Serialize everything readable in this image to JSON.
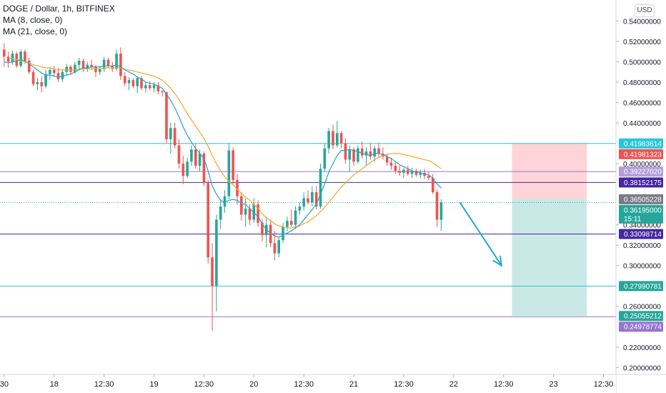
{
  "legend": {
    "symbol": "DOGE / Dollar, 1h, BITFINEX",
    "ma1": "MA (8, close, 0)",
    "ma2": "MA (21, close, 0)"
  },
  "currency_button": "USD",
  "colors": {
    "up": "#26a69a",
    "down": "#ef5350",
    "ma_fast": "#2196f3",
    "ma_fast_line": "#26a3c6",
    "ma_slow": "#f5a623",
    "cyan_line": "#26c6da",
    "purple_line": "#7e57c2",
    "arrow": "#1ea8d6",
    "profit_zone": "#b2dfdb",
    "loss_zone": "#ffcdd2"
  },
  "axis": {
    "y_ticks": [
      "0.54000000",
      "0.52000000",
      "0.50000000",
      "0.48000000",
      "0.46000000",
      "0.44000000",
      "0.40000000",
      "0.34000000",
      "0.32000000",
      "0.30000000",
      "0.26000000",
      "0.22000000",
      "0.20000000"
    ],
    "y_tick_values": [
      0.54,
      0.52,
      0.5,
      0.48,
      0.46,
      0.44,
      0.4,
      0.34,
      0.32,
      0.3,
      0.26,
      0.22,
      0.2
    ],
    "x_ticks": [
      "30",
      "18",
      "12:30",
      "19",
      "12:30",
      "20",
      "12:30",
      "21",
      "12:30",
      "22",
      "12:30",
      "23",
      "12:30"
    ],
    "x_tick_bars": [
      0,
      12,
      24,
      36,
      48,
      60,
      72,
      84,
      96,
      108,
      120,
      132,
      144
    ]
  },
  "price_labels": [
    {
      "text": "0.41983614",
      "value": 0.41983614,
      "bg": "#26c6da",
      "fg": "#ffffff"
    },
    {
      "text": "0.41981323",
      "value": 0.41981323,
      "bg": "#ef5350",
      "fg": "#ffffff"
    },
    {
      "text": "0.39227020",
      "value": 0.3922702,
      "bg": "#b39ddb",
      "fg": "#ffffff"
    },
    {
      "text": "0.38152175",
      "value": 0.38152175,
      "bg": "#4527a0",
      "fg": "#ffffff"
    },
    {
      "text": "0.36505228",
      "value": 0.36505228,
      "bg": "#787b86",
      "fg": "#ffffff"
    },
    {
      "text": "0.36195000",
      "value": 0.36195,
      "bg": "#26a69a",
      "fg": "#ffffff",
      "countdown": "15:11"
    },
    {
      "text": "0.33098714",
      "value": 0.33098714,
      "bg": "#4527a0",
      "fg": "#ffffff"
    },
    {
      "text": "0.27990781",
      "value": 0.27990781,
      "bg": "#26a69a",
      "fg": "#ffffff"
    },
    {
      "text": "0.25055212",
      "value": 0.25055212,
      "bg": "#26a69a",
      "fg": "#ffffff"
    },
    {
      "text": "0.24978774",
      "value": 0.24978774,
      "bg": "#9575cd",
      "fg": "#ffffff"
    }
  ],
  "levels": [
    {
      "value": 0.41983614,
      "color": "#26c6da",
      "style": "solid"
    },
    {
      "value": 0.3922702,
      "color": "#9575cd",
      "style": "solid"
    },
    {
      "value": 0.38152175,
      "color": "#4527a0",
      "style": "solid"
    },
    {
      "value": 0.36195,
      "color": "#26a69a",
      "style": "dotted"
    },
    {
      "value": 0.33098714,
      "color": "#4527a0",
      "style": "solid"
    },
    {
      "value": 0.27990781,
      "color": "#26c6da",
      "style": "solid"
    },
    {
      "value": 0.24978774,
      "color": "#9575cd",
      "style": "solid"
    }
  ],
  "position": {
    "type": "short",
    "entry": 0.36505228,
    "stop": 0.41981323,
    "target": 0.25055212,
    "start_bar": 122,
    "end_bar": 140
  },
  "arrow": {
    "from": [
      109.5,
      0.362
    ],
    "to": [
      119.5,
      0.3
    ]
  },
  "chart_data": {
    "type": "candlestick",
    "title": "DOGE / Dollar, 1h, BITFINEX",
    "ylim": [
      0.196,
      0.548
    ],
    "x_range_bars": [
      -1,
      147
    ],
    "grid": false,
    "candles": [
      [
        0.512,
        0.518,
        0.495,
        0.505
      ],
      [
        0.505,
        0.51,
        0.494,
        0.5
      ],
      [
        0.5,
        0.511,
        0.497,
        0.508
      ],
      [
        0.508,
        0.51,
        0.494,
        0.496
      ],
      [
        0.496,
        0.512,
        0.494,
        0.51
      ],
      [
        0.51,
        0.512,
        0.498,
        0.501
      ],
      [
        0.501,
        0.504,
        0.488,
        0.49
      ],
      [
        0.49,
        0.492,
        0.476,
        0.478
      ],
      [
        0.478,
        0.484,
        0.472,
        0.48
      ],
      [
        0.48,
        0.486,
        0.47,
        0.476
      ],
      [
        0.476,
        0.492,
        0.474,
        0.488
      ],
      [
        0.488,
        0.495,
        0.482,
        0.492
      ],
      [
        0.492,
        0.496,
        0.485,
        0.489
      ],
      [
        0.489,
        0.494,
        0.48,
        0.483
      ],
      [
        0.483,
        0.492,
        0.48,
        0.49
      ],
      [
        0.49,
        0.498,
        0.486,
        0.495
      ],
      [
        0.495,
        0.497,
        0.487,
        0.49
      ],
      [
        0.49,
        0.5,
        0.488,
        0.497
      ],
      [
        0.497,
        0.504,
        0.493,
        0.501
      ],
      [
        0.501,
        0.503,
        0.49,
        0.493
      ],
      [
        0.493,
        0.5,
        0.49,
        0.497
      ],
      [
        0.497,
        0.502,
        0.492,
        0.495
      ],
      [
        0.495,
        0.497,
        0.485,
        0.49
      ],
      [
        0.49,
        0.496,
        0.487,
        0.493
      ],
      [
        0.493,
        0.505,
        0.49,
        0.502
      ],
      [
        0.502,
        0.504,
        0.494,
        0.496
      ],
      [
        0.496,
        0.5,
        0.49,
        0.493
      ],
      [
        0.493,
        0.512,
        0.491,
        0.508
      ],
      [
        0.508,
        0.514,
        0.482,
        0.486
      ],
      [
        0.486,
        0.49,
        0.476,
        0.479
      ],
      [
        0.479,
        0.485,
        0.472,
        0.482
      ],
      [
        0.482,
        0.484,
        0.474,
        0.476
      ],
      [
        0.476,
        0.486,
        0.469,
        0.484
      ],
      [
        0.484,
        0.486,
        0.472,
        0.474
      ],
      [
        0.474,
        0.48,
        0.47,
        0.477
      ],
      [
        0.477,
        0.481,
        0.472,
        0.474
      ],
      [
        0.474,
        0.48,
        0.47,
        0.477
      ],
      [
        0.477,
        0.48,
        0.468,
        0.471
      ],
      [
        0.471,
        0.472,
        0.466,
        0.47
      ],
      [
        0.47,
        0.471,
        0.42,
        0.424
      ],
      [
        0.424,
        0.44,
        0.41,
        0.435
      ],
      [
        0.435,
        0.44,
        0.415,
        0.418
      ],
      [
        0.418,
        0.424,
        0.395,
        0.4
      ],
      [
        0.4,
        0.408,
        0.38,
        0.388
      ],
      [
        0.388,
        0.406,
        0.386,
        0.402
      ],
      [
        0.402,
        0.418,
        0.398,
        0.414
      ],
      [
        0.414,
        0.42,
        0.395,
        0.398
      ],
      [
        0.398,
        0.414,
        0.392,
        0.41
      ],
      [
        0.41,
        0.412,
        0.378,
        0.381
      ],
      [
        0.381,
        0.384,
        0.302,
        0.308
      ],
      [
        0.308,
        0.322,
        0.236,
        0.28
      ],
      [
        0.28,
        0.35,
        0.255,
        0.345
      ],
      [
        0.345,
        0.365,
        0.336,
        0.358
      ],
      [
        0.358,
        0.374,
        0.352,
        0.368
      ],
      [
        0.368,
        0.42,
        0.365,
        0.413
      ],
      [
        0.413,
        0.416,
        0.38,
        0.384
      ],
      [
        0.384,
        0.39,
        0.36,
        0.368
      ],
      [
        0.368,
        0.372,
        0.344,
        0.35
      ],
      [
        0.35,
        0.366,
        0.338,
        0.356
      ],
      [
        0.356,
        0.36,
        0.34,
        0.345
      ],
      [
        0.345,
        0.366,
        0.342,
        0.36
      ],
      [
        0.36,
        0.364,
        0.338,
        0.342
      ],
      [
        0.342,
        0.346,
        0.324,
        0.33
      ],
      [
        0.33,
        0.348,
        0.318,
        0.34
      ],
      [
        0.34,
        0.345,
        0.318,
        0.322
      ],
      [
        0.322,
        0.334,
        0.305,
        0.312
      ],
      [
        0.312,
        0.328,
        0.308,
        0.325
      ],
      [
        0.325,
        0.342,
        0.322,
        0.338
      ],
      [
        0.338,
        0.348,
        0.334,
        0.344
      ],
      [
        0.344,
        0.355,
        0.338,
        0.34
      ],
      [
        0.34,
        0.358,
        0.336,
        0.354
      ],
      [
        0.354,
        0.362,
        0.35,
        0.358
      ],
      [
        0.358,
        0.372,
        0.354,
        0.366
      ],
      [
        0.366,
        0.374,
        0.36,
        0.362
      ],
      [
        0.362,
        0.378,
        0.358,
        0.372
      ],
      [
        0.372,
        0.378,
        0.355,
        0.358
      ],
      [
        0.358,
        0.4,
        0.356,
        0.395
      ],
      [
        0.395,
        0.42,
        0.392,
        0.415
      ],
      [
        0.415,
        0.435,
        0.41,
        0.432
      ],
      [
        0.432,
        0.438,
        0.414,
        0.418
      ],
      [
        0.418,
        0.442,
        0.416,
        0.43
      ],
      [
        0.43,
        0.432,
        0.415,
        0.42
      ],
      [
        0.42,
        0.425,
        0.4,
        0.404
      ],
      [
        0.404,
        0.418,
        0.392,
        0.414
      ],
      [
        0.414,
        0.416,
        0.398,
        0.402
      ],
      [
        0.402,
        0.418,
        0.4,
        0.415
      ],
      [
        0.415,
        0.422,
        0.405,
        0.408
      ],
      [
        0.408,
        0.416,
        0.398,
        0.412
      ],
      [
        0.412,
        0.42,
        0.404,
        0.407
      ],
      [
        0.407,
        0.418,
        0.402,
        0.415
      ],
      [
        0.415,
        0.42,
        0.406,
        0.41
      ],
      [
        0.41,
        0.416,
        0.404,
        0.407
      ],
      [
        0.407,
        0.41,
        0.398,
        0.401
      ],
      [
        0.401,
        0.406,
        0.394,
        0.398
      ],
      [
        0.398,
        0.402,
        0.39,
        0.393
      ],
      [
        0.393,
        0.398,
        0.388,
        0.391
      ],
      [
        0.391,
        0.396,
        0.386,
        0.394
      ],
      [
        0.394,
        0.398,
        0.388,
        0.39
      ],
      [
        0.39,
        0.396,
        0.386,
        0.393
      ],
      [
        0.393,
        0.395,
        0.387,
        0.389
      ],
      [
        0.389,
        0.394,
        0.386,
        0.391
      ],
      [
        0.391,
        0.395,
        0.385,
        0.388
      ],
      [
        0.388,
        0.392,
        0.384,
        0.386
      ],
      [
        0.386,
        0.39,
        0.37,
        0.372
      ],
      [
        0.372,
        0.375,
        0.338,
        0.345
      ],
      [
        0.345,
        0.365,
        0.334,
        0.362
      ]
    ],
    "ma_fast": [
      0.5,
      0.499,
      0.5,
      0.501,
      0.502,
      0.501,
      0.498,
      0.495,
      0.492,
      0.489,
      0.487,
      0.487,
      0.486,
      0.485,
      0.486,
      0.487,
      0.488,
      0.49,
      0.492,
      0.494,
      0.494,
      0.495,
      0.495,
      0.495,
      0.496,
      0.496,
      0.496,
      0.497,
      0.495,
      0.492,
      0.49,
      0.488,
      0.485,
      0.483,
      0.48,
      0.479,
      0.478,
      0.476,
      0.474,
      0.468,
      0.462,
      0.455,
      0.446,
      0.436,
      0.428,
      0.421,
      0.415,
      0.41,
      0.405,
      0.393,
      0.378,
      0.37,
      0.364,
      0.362,
      0.364,
      0.365,
      0.364,
      0.361,
      0.36,
      0.356,
      0.352,
      0.348,
      0.341,
      0.335,
      0.332,
      0.329,
      0.328,
      0.33,
      0.332,
      0.334,
      0.337,
      0.34,
      0.345,
      0.35,
      0.355,
      0.36,
      0.37,
      0.38,
      0.392,
      0.4,
      0.408,
      0.413,
      0.413,
      0.414,
      0.413,
      0.412,
      0.41,
      0.409,
      0.408,
      0.41,
      0.41,
      0.409,
      0.407,
      0.405,
      0.402,
      0.399,
      0.397,
      0.395,
      0.393,
      0.392,
      0.391,
      0.39,
      0.389,
      0.386,
      0.38,
      0.376
    ],
    "ma_slow": [
      null,
      0.504,
      0.503,
      0.502,
      0.501,
      0.5,
      0.499,
      0.497,
      0.496,
      0.495,
      0.494,
      0.494,
      0.493,
      0.492,
      0.492,
      0.492,
      0.492,
      0.492,
      0.493,
      0.493,
      0.493,
      0.493,
      0.493,
      0.493,
      0.494,
      0.494,
      0.494,
      0.494,
      0.494,
      0.493,
      0.492,
      0.491,
      0.49,
      0.489,
      0.488,
      0.487,
      0.486,
      0.484,
      0.482,
      0.478,
      0.474,
      0.469,
      0.463,
      0.456,
      0.449,
      0.443,
      0.437,
      0.431,
      0.425,
      0.417,
      0.408,
      0.4,
      0.393,
      0.387,
      0.383,
      0.379,
      0.375,
      0.371,
      0.367,
      0.364,
      0.36,
      0.356,
      0.351,
      0.347,
      0.344,
      0.341,
      0.339,
      0.338,
      0.337,
      0.337,
      0.338,
      0.339,
      0.341,
      0.343,
      0.346,
      0.349,
      0.353,
      0.357,
      0.362,
      0.367,
      0.372,
      0.377,
      0.381,
      0.385,
      0.389,
      0.392,
      0.395,
      0.398,
      0.401,
      0.404,
      0.406,
      0.408,
      0.409,
      0.41,
      0.41,
      0.41,
      0.409,
      0.408,
      0.407,
      0.406,
      0.405,
      0.404,
      0.403,
      0.401,
      0.398,
      0.395
    ]
  }
}
